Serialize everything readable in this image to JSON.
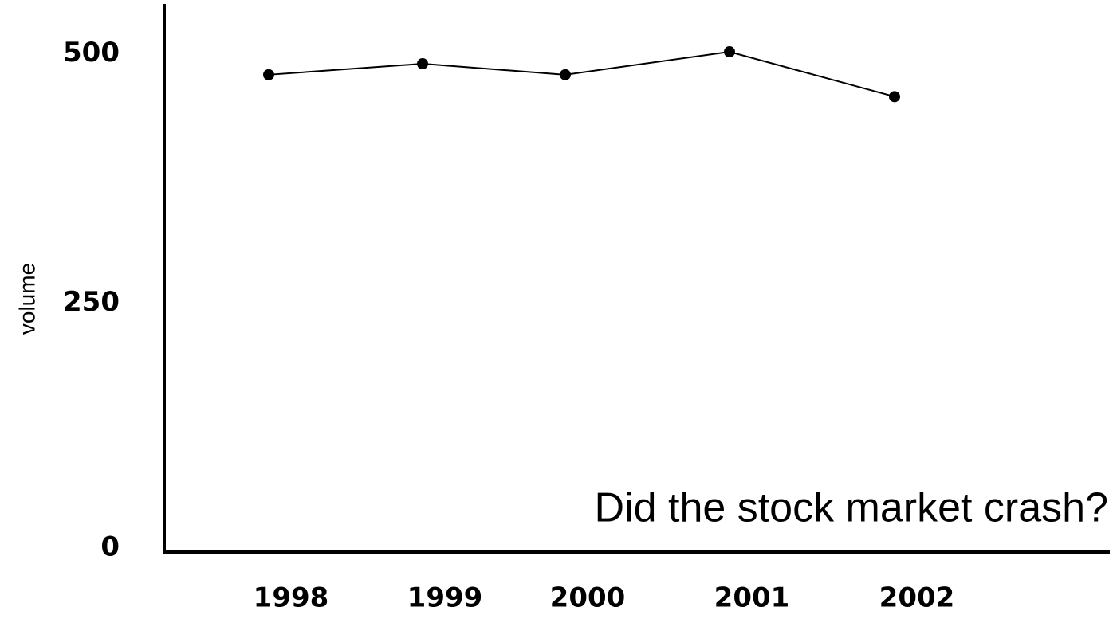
{
  "chart_data": {
    "type": "line",
    "annotation": "Did the stock market crash?",
    "y_label": "volume",
    "categories": [
      "1998",
      "1999",
      "2000",
      "2001",
      "2002"
    ],
    "series": [
      {
        "name": "volume",
        "color": "#000000",
        "values": [
          479,
          490,
          479,
          502,
          457
        ]
      }
    ],
    "ylim": [
      0,
      550
    ],
    "yticks": [
      0,
      250,
      500
    ],
    "grid": false
  }
}
